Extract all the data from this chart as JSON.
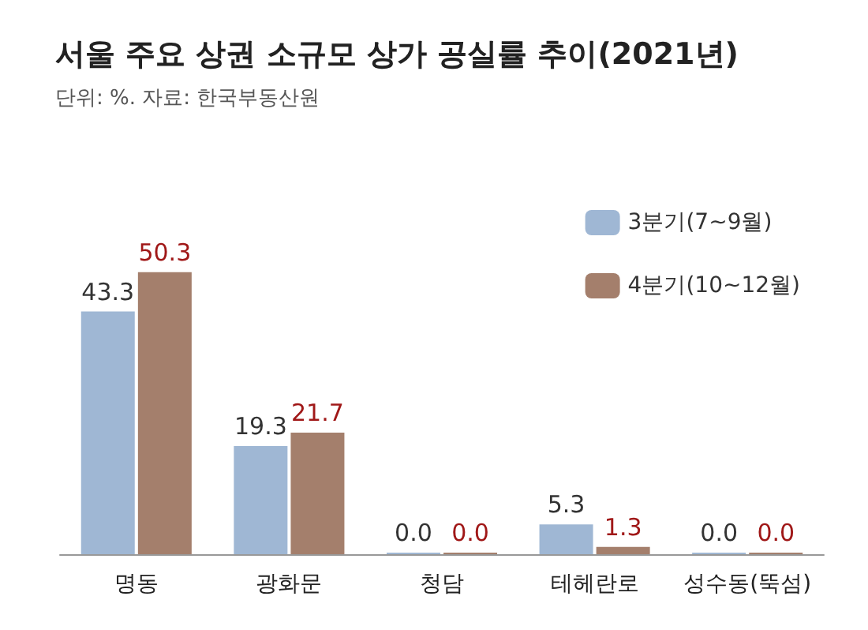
{
  "chart_data": {
    "type": "bar",
    "title": "서울 주요 상권 소규모 상가 공실률 추이(2021년)",
    "subtitle": "단위: %. 자료: 한국부동산원",
    "categories": [
      "명동",
      "광화문",
      "청담",
      "테헤란로",
      "성수동(뚝섬)"
    ],
    "series": [
      {
        "name": "3분기(7~9월)",
        "color": "#9fb7d4",
        "values": [
          43.3,
          19.3,
          0.0,
          5.3,
          0.0
        ],
        "value_labels": [
          "43.3",
          "19.3",
          "0.0",
          "5.3",
          "0.0"
        ]
      },
      {
        "name": "4분기(10~12월)",
        "color": "#a47f6c",
        "values": [
          50.3,
          21.7,
          0.0,
          1.3,
          0.0
        ],
        "value_labels": [
          "50.3",
          "21.7",
          "0.0",
          "1.3",
          "0.0"
        ]
      }
    ],
    "legend": "top right",
    "grid": false
  }
}
